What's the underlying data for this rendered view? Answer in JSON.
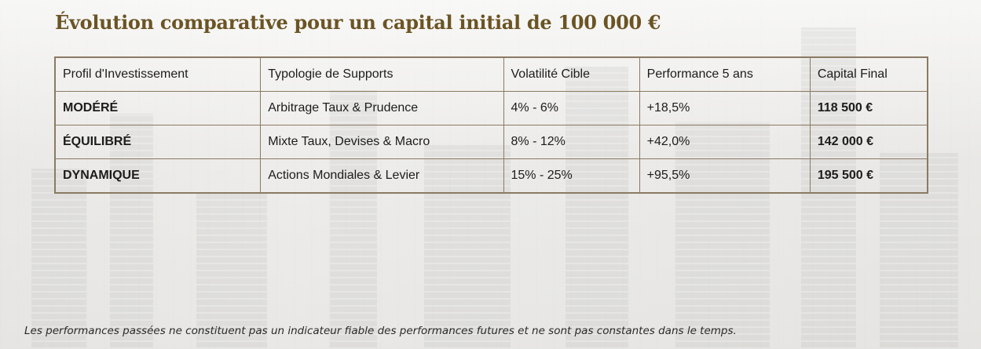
{
  "title": "Évolution comparative pour un capital initial de 100 000 €",
  "table": {
    "headers": [
      "Profil d'Investissement",
      "Typologie de Supports",
      "Volatilité Cible",
      "Performance 5 ans",
      "Capital Final"
    ],
    "rows": [
      [
        "MODÉRÉ",
        "Arbitrage Taux & Prudence",
        "4% - 6%",
        "+18,5%",
        "118 500 €"
      ],
      [
        "ÉQUILIBRÉ",
        "Mixte Taux, Devises & Macro",
        "8% - 12%",
        "+42,0%",
        "142 000 €"
      ],
      [
        "DYNAMIQUE",
        "Actions Mondiales & Levier",
        "15% - 25%",
        "+95,5%",
        "195 500 €"
      ]
    ]
  },
  "footnote": "Les performances passées ne constituent pas un indicateur fiable des performances futures et ne sont pas constantes dans le temps.",
  "colors": {
    "title": "#6b5424",
    "border": "#8a7a62",
    "text": "#1c1c1c"
  }
}
